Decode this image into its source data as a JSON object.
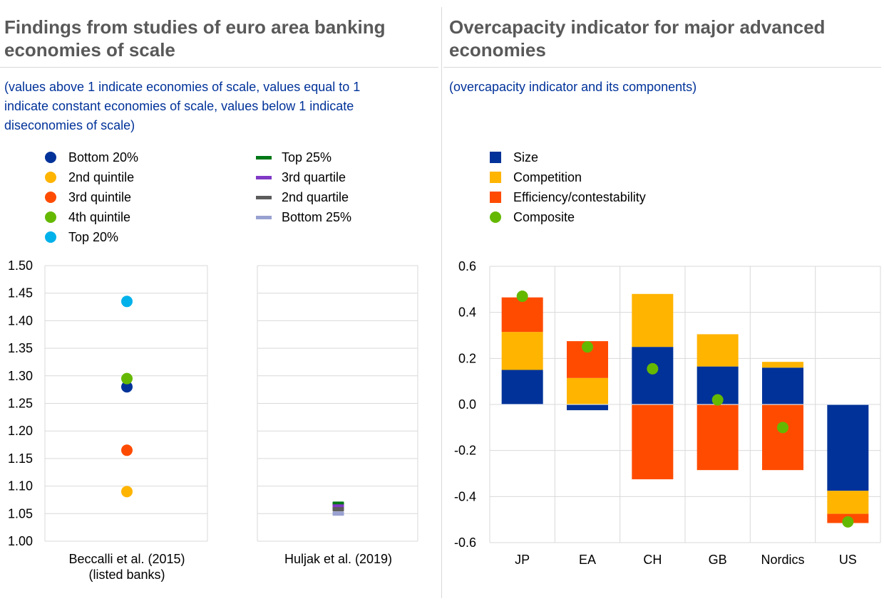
{
  "left_panel": {
    "title_line1": "Findings from studies of euro area banking",
    "title_line2": "economies of scale",
    "subtitle_line1": "(values above 1 indicate economies of scale, values equal to 1",
    "subtitle_line2": "indicate constant economies of scale, values below 1 indicate",
    "subtitle_line3": "diseconomies of scale)",
    "legend_col1": [
      {
        "label": "Bottom 20%",
        "color": "#003299"
      },
      {
        "label": "2nd quintile",
        "color": "#FFB400"
      },
      {
        "label": "3rd quintile",
        "color": "#FF4B00"
      },
      {
        "label": "4th quintile",
        "color": "#65B800"
      },
      {
        "label": "Top 20%",
        "color": "#00B1EA"
      }
    ],
    "legend_col2": [
      {
        "label": "Top 25%",
        "color": "#007816"
      },
      {
        "label": "3rd quartile",
        "color": "#8139C6"
      },
      {
        "label": "2nd quartile",
        "color": "#5C5C5C"
      },
      {
        "label": "Bottom 25%",
        "color": "#98A1D0"
      }
    ]
  },
  "right_panel": {
    "title_line1": "Overcapacity indicator for major advanced",
    "title_line2": "economies",
    "subtitle": "(overcapacity indicator and its components)",
    "legend": [
      {
        "label": "Size",
        "color": "#003299",
        "shape": "square"
      },
      {
        "label": "Competition",
        "color": "#FFB400",
        "shape": "square"
      },
      {
        "label": "Efficiency/contestability",
        "color": "#FF4B00",
        "shape": "square"
      },
      {
        "label": "Composite",
        "color": "#65B800",
        "shape": "circle"
      }
    ]
  },
  "chart_data": [
    {
      "type": "scatter",
      "ylim": [
        1.0,
        1.5
      ],
      "yticks": [
        "1.00",
        "1.05",
        "1.10",
        "1.15",
        "1.20",
        "1.25",
        "1.30",
        "1.35",
        "1.40",
        "1.45",
        "1.50"
      ],
      "panels": [
        {
          "label_line1": "Beccalli et al. (2015)",
          "label_line2": "(listed banks)",
          "points": [
            {
              "series": "Bottom 20%",
              "value": 1.28,
              "color": "#003299",
              "marker": "circle"
            },
            {
              "series": "2nd quintile",
              "value": 1.09,
              "color": "#FFB400",
              "marker": "circle"
            },
            {
              "series": "3rd quintile",
              "value": 1.165,
              "color": "#FF4B00",
              "marker": "circle"
            },
            {
              "series": "4th quintile",
              "value": 1.295,
              "color": "#65B800",
              "marker": "circle"
            },
            {
              "series": "Top 20%",
              "value": 1.435,
              "color": "#00B1EA",
              "marker": "circle"
            }
          ]
        },
        {
          "label_line1": "Huljak et al. (2019)",
          "label_line2": "",
          "points": [
            {
              "series": "Top 25%",
              "value": 1.068,
              "color": "#007816",
              "marker": "dash"
            },
            {
              "series": "3rd quartile",
              "value": 1.063,
              "color": "#8139C6",
              "marker": "dash"
            },
            {
              "series": "2nd quartile",
              "value": 1.058,
              "color": "#5C5C5C",
              "marker": "dash"
            },
            {
              "series": "Bottom 25%",
              "value": 1.05,
              "color": "#98A1D0",
              "marker": "dash"
            }
          ]
        }
      ]
    },
    {
      "type": "bar",
      "stacked": true,
      "ylim": [
        -0.6,
        0.6
      ],
      "yticks": [
        "-0.6",
        "-0.4",
        "-0.2",
        "0.0",
        "0.2",
        "0.4",
        "0.6"
      ],
      "categories": [
        "JP",
        "EA",
        "CH",
        "GB",
        "Nordics",
        "US"
      ],
      "series": [
        {
          "name": "Size",
          "color": "#003299",
          "values": [
            0.15,
            -0.025,
            0.25,
            0.165,
            0.16,
            -0.375
          ]
        },
        {
          "name": "Competition",
          "color": "#FFB400",
          "values": [
            0.165,
            0.115,
            0.23,
            0.14,
            0.025,
            -0.1
          ]
        },
        {
          "name": "Efficiency/contestability",
          "color": "#FF4B00",
          "values": [
            0.15,
            0.16,
            -0.325,
            -0.285,
            -0.285,
            -0.04
          ]
        }
      ],
      "composite": {
        "name": "Composite",
        "color": "#65B800",
        "values": [
          0.47,
          0.25,
          0.155,
          0.02,
          -0.1,
          -0.51
        ]
      }
    }
  ]
}
